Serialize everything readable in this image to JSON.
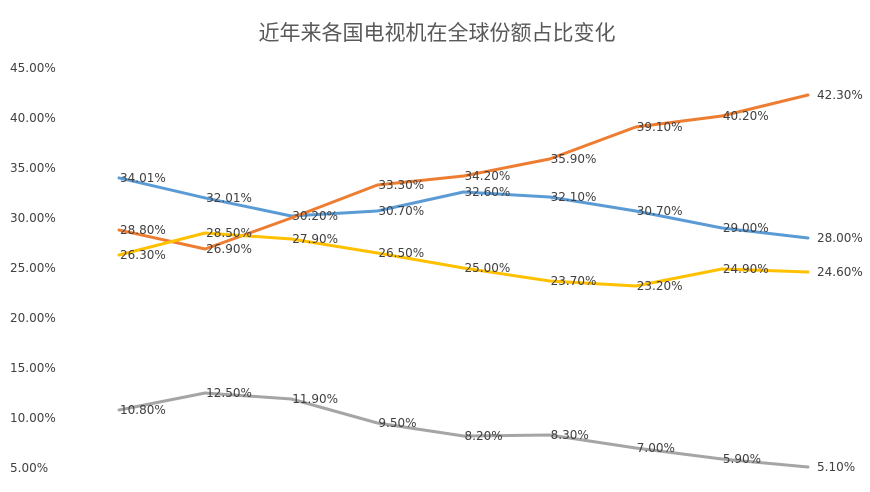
{
  "chart_data": {
    "type": "line",
    "title": "近年来各国电视机在全球份额占比变化",
    "xlabel": "",
    "ylabel": "",
    "ylim": [
      5,
      45
    ],
    "y_ticks": [
      "5.00%",
      "10.00%",
      "15.00%",
      "20.00%",
      "25.00%",
      "30.00%",
      "35.00%",
      "40.00%",
      "45.00%"
    ],
    "grid": false,
    "x": [
      1,
      2,
      3,
      4,
      5,
      6,
      7,
      8,
      9
    ],
    "series": [
      {
        "color": "#5b9bd5",
        "values": [
          34.01,
          32.01,
          30.2,
          30.7,
          32.6,
          32.1,
          30.7,
          29.0,
          28.0
        ],
        "labels": [
          "34.01%",
          "32.01%",
          "30.20%",
          "30.70%",
          "32.60%",
          "32.10%",
          "30.70%",
          "29.00%",
          "28.00%"
        ]
      },
      {
        "color": "#ed7d31",
        "values": [
          28.8,
          26.9,
          30.0,
          33.3,
          34.2,
          35.9,
          39.1,
          40.2,
          42.3
        ],
        "labels": [
          "28.80%",
          "26.90%",
          "",
          "33.30%",
          "34.20%",
          "35.90%",
          "39.10%",
          "40.20%",
          "42.30%"
        ]
      },
      {
        "color": "#ffc000",
        "values": [
          26.3,
          28.5,
          27.9,
          26.5,
          25.0,
          23.7,
          23.2,
          24.9,
          24.6
        ],
        "labels": [
          "26.30%",
          "28.50%",
          "27.90%",
          "26.50%",
          "25.00%",
          "23.70%",
          "23.20%",
          "24.90%",
          "24.60%"
        ]
      },
      {
        "color": "#a5a5a5",
        "values": [
          10.8,
          12.5,
          11.9,
          9.5,
          8.2,
          8.3,
          7.0,
          5.9,
          5.1
        ],
        "labels": [
          "10.80%",
          "12.50%",
          "11.90%",
          "9.50%",
          "8.20%",
          "8.30%",
          "7.00%",
          "5.90%",
          "5.10%"
        ]
      }
    ]
  }
}
